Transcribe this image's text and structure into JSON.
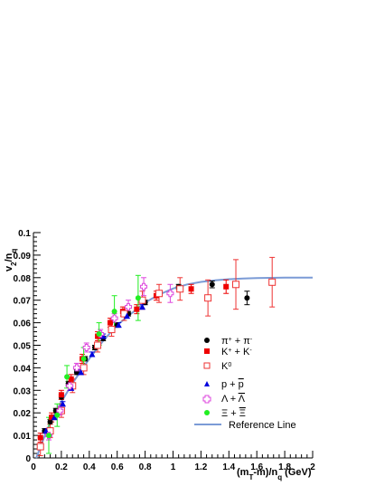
{
  "chart_data": {
    "type": "scatter",
    "title": "",
    "xlabel": "(m_T-m)/n_q (GeV)",
    "ylabel": "v_2/n_q",
    "xlim": [
      0,
      2
    ],
    "ylim": [
      0,
      0.1
    ],
    "x_ticks": [
      "0",
      "0.2",
      "0.4",
      "0.6",
      "0.8",
      "1",
      "1.2",
      "1.4",
      "1.6",
      "1.8",
      "2"
    ],
    "y_ticks": [
      "0",
      "0.01",
      "0.02",
      "0.03",
      "0.04",
      "0.05",
      "0.06",
      "0.07",
      "0.08",
      "0.09",
      "0.1"
    ],
    "legend_position": "center-right",
    "series": [
      {
        "name": "π⁺ + π⁻",
        "marker": "circle",
        "color": "#000000",
        "points": [
          {
            "x": 0.08,
            "y": 0.012,
            "err": 0.001
          },
          {
            "x": 0.12,
            "y": 0.016,
            "err": 0.001
          },
          {
            "x": 0.16,
            "y": 0.021,
            "err": 0.001
          },
          {
            "x": 0.2,
            "y": 0.027,
            "err": 0.001
          },
          {
            "x": 0.25,
            "y": 0.033,
            "err": 0.001
          },
          {
            "x": 0.31,
            "y": 0.038,
            "err": 0.001
          },
          {
            "x": 0.37,
            "y": 0.044,
            "err": 0.001
          },
          {
            "x": 0.44,
            "y": 0.049,
            "err": 0.001
          },
          {
            "x": 0.5,
            "y": 0.053,
            "err": 0.001
          },
          {
            "x": 0.6,
            "y": 0.059,
            "err": 0.001
          },
          {
            "x": 0.68,
            "y": 0.064,
            "err": 0.001
          },
          {
            "x": 0.8,
            "y": 0.069,
            "err": 0.001
          },
          {
            "x": 1.04,
            "y": 0.076,
            "err": 0.001
          },
          {
            "x": 1.28,
            "y": 0.077,
            "err": 0.0015
          },
          {
            "x": 1.53,
            "y": 0.071,
            "err": 0.003
          }
        ]
      },
      {
        "name": "K⁺ + K⁻",
        "marker": "square",
        "color": "#ee0000",
        "points": [
          {
            "x": 0.05,
            "y": 0.009,
            "err": 0.002
          },
          {
            "x": 0.13,
            "y": 0.018,
            "err": 0.002
          },
          {
            "x": 0.2,
            "y": 0.028,
            "err": 0.002
          },
          {
            "x": 0.27,
            "y": 0.035,
            "err": 0.002
          },
          {
            "x": 0.35,
            "y": 0.044,
            "err": 0.002
          },
          {
            "x": 0.46,
            "y": 0.054,
            "err": 0.002
          },
          {
            "x": 0.55,
            "y": 0.06,
            "err": 0.002
          },
          {
            "x": 0.64,
            "y": 0.065,
            "err": 0.002
          },
          {
            "x": 0.74,
            "y": 0.066,
            "err": 0.002
          },
          {
            "x": 0.88,
            "y": 0.072,
            "err": 0.002
          },
          {
            "x": 1.13,
            "y": 0.075,
            "err": 0.002
          },
          {
            "x": 1.38,
            "y": 0.076,
            "err": 0.003
          }
        ]
      },
      {
        "name": "K⁰",
        "marker": "open-square",
        "color": "#ee3333",
        "points": [
          {
            "x": 0.05,
            "y": 0.005,
            "err": 0.004
          },
          {
            "x": 0.12,
            "y": 0.012,
            "err": 0.003
          },
          {
            "x": 0.2,
            "y": 0.021,
            "err": 0.003
          },
          {
            "x": 0.28,
            "y": 0.032,
            "err": 0.003
          },
          {
            "x": 0.36,
            "y": 0.04,
            "err": 0.003
          },
          {
            "x": 0.46,
            "y": 0.05,
            "err": 0.003
          },
          {
            "x": 0.56,
            "y": 0.057,
            "err": 0.003
          },
          {
            "x": 0.65,
            "y": 0.064,
            "err": 0.003
          },
          {
            "x": 0.78,
            "y": 0.07,
            "err": 0.004
          },
          {
            "x": 0.9,
            "y": 0.073,
            "err": 0.004
          },
          {
            "x": 1.05,
            "y": 0.075,
            "err": 0.005
          },
          {
            "x": 1.25,
            "y": 0.071,
            "err": 0.008
          },
          {
            "x": 1.45,
            "y": 0.077,
            "err": 0.011
          },
          {
            "x": 1.71,
            "y": 0.078,
            "err": 0.011
          }
        ]
      },
      {
        "name": "p + p̄",
        "marker": "triangle",
        "color": "#0000dd",
        "points": [
          {
            "x": 0.09,
            "y": 0.012,
            "err": 0.001
          },
          {
            "x": 0.15,
            "y": 0.018,
            "err": 0.001
          },
          {
            "x": 0.21,
            "y": 0.024,
            "err": 0.001
          },
          {
            "x": 0.27,
            "y": 0.031,
            "err": 0.001
          },
          {
            "x": 0.34,
            "y": 0.038,
            "err": 0.001
          },
          {
            "x": 0.42,
            "y": 0.046,
            "err": 0.001
          },
          {
            "x": 0.5,
            "y": 0.054,
            "err": 0.001
          },
          {
            "x": 0.61,
            "y": 0.059,
            "err": 0.001
          },
          {
            "x": 0.67,
            "y": 0.063,
            "err": 0.001
          },
          {
            "x": 0.78,
            "y": 0.067,
            "err": 0.001
          }
        ]
      },
      {
        "name": "Λ + Λ̄",
        "marker": "open-cross",
        "color": "#dd44dd",
        "points": [
          {
            "x": 0.11,
            "y": 0.01,
            "err": 0.002
          },
          {
            "x": 0.19,
            "y": 0.021,
            "err": 0.002
          },
          {
            "x": 0.26,
            "y": 0.032,
            "err": 0.002
          },
          {
            "x": 0.31,
            "y": 0.04,
            "err": 0.002
          },
          {
            "x": 0.38,
            "y": 0.049,
            "err": 0.002
          },
          {
            "x": 0.48,
            "y": 0.055,
            "err": 0.002
          },
          {
            "x": 0.58,
            "y": 0.062,
            "err": 0.002
          },
          {
            "x": 0.68,
            "y": 0.067,
            "err": 0.003
          },
          {
            "x": 0.79,
            "y": 0.076,
            "err": 0.004
          },
          {
            "x": 0.98,
            "y": 0.073,
            "err": 0.004
          }
        ]
      },
      {
        "name": "Ξ + Ξ̄",
        "marker": "circle",
        "color": "#22ee22",
        "points": [
          {
            "x": 0.11,
            "y": 0.01,
            "err": 0.008
          },
          {
            "x": 0.17,
            "y": 0.019,
            "err": 0.005
          },
          {
            "x": 0.24,
            "y": 0.036,
            "err": 0.005
          },
          {
            "x": 0.36,
            "y": 0.044,
            "err": 0.005
          },
          {
            "x": 0.47,
            "y": 0.055,
            "err": 0.005
          },
          {
            "x": 0.58,
            "y": 0.065,
            "err": 0.007
          },
          {
            "x": 0.75,
            "y": 0.071,
            "err": 0.01
          }
        ]
      }
    ],
    "reference": {
      "name": "Reference Line",
      "color": "#7b9bd6",
      "curve": [
        [
          0.02,
          0.0
        ],
        [
          0.1,
          0.013
        ],
        [
          0.2,
          0.025
        ],
        [
          0.3,
          0.035
        ],
        [
          0.4,
          0.044
        ],
        [
          0.5,
          0.052
        ],
        [
          0.6,
          0.059
        ],
        [
          0.7,
          0.064
        ],
        [
          0.8,
          0.069
        ],
        [
          0.9,
          0.0725
        ],
        [
          1.0,
          0.0752
        ],
        [
          1.1,
          0.077
        ],
        [
          1.2,
          0.0781
        ],
        [
          1.3,
          0.0788
        ],
        [
          1.4,
          0.0793
        ],
        [
          1.5,
          0.0796
        ],
        [
          1.6,
          0.0798
        ],
        [
          1.7,
          0.0799
        ],
        [
          1.8,
          0.08
        ],
        [
          2.0,
          0.08
        ]
      ]
    }
  }
}
